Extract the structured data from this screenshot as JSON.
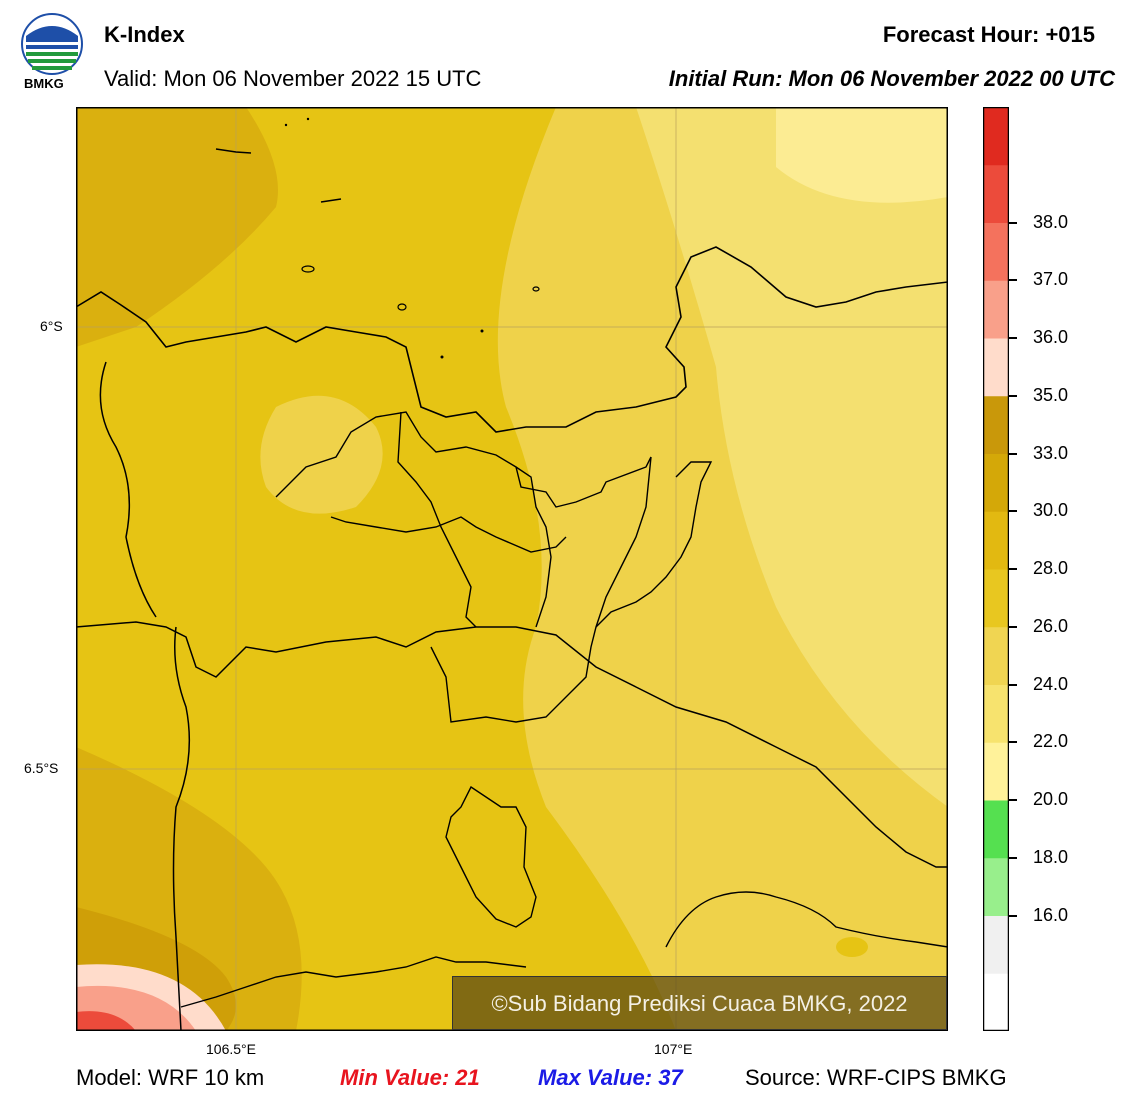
{
  "header": {
    "title": "K-Index",
    "valid": "Valid: Mon 06 November 2022 15 UTC",
    "forecast_hour": "Forecast Hour: +015",
    "initial_run": "Initial Run: Mon 06 November 2022 00 UTC"
  },
  "logo": {
    "text": "BMKG",
    "icon": "bmkg-logo-icon"
  },
  "map": {
    "lat_labels": [
      "6°S",
      "6.5°S"
    ],
    "lon_labels": [
      "106.5°E",
      "107°E"
    ],
    "credit": "©Sub Bidang Prediksi Cuaca BMKG, 2022"
  },
  "colorbar": {
    "ticks": [
      "16.0",
      "18.0",
      "20.0",
      "22.0",
      "24.0",
      "26.0",
      "28.0",
      "30.0",
      "33.0",
      "35.0",
      "36.0",
      "37.0",
      "38.0"
    ],
    "colors": [
      "#ffffff",
      "#f0f0f0",
      "#98ef8c",
      "#55e050",
      "#fff29a",
      "#f7e36e",
      "#f0d552",
      "#e8c720",
      "#e2b911",
      "#d4a808",
      "#c9980a",
      "#ffdccb",
      "#f9a08a",
      "#f4725d",
      "#ec4b3b",
      "#e02a1f"
    ]
  },
  "footer": {
    "model": "Model: WRF 10 km",
    "min": "Min Value: 21",
    "max": "Max Value: 37",
    "source": "Source: WRF-CIPS BMKG"
  }
}
